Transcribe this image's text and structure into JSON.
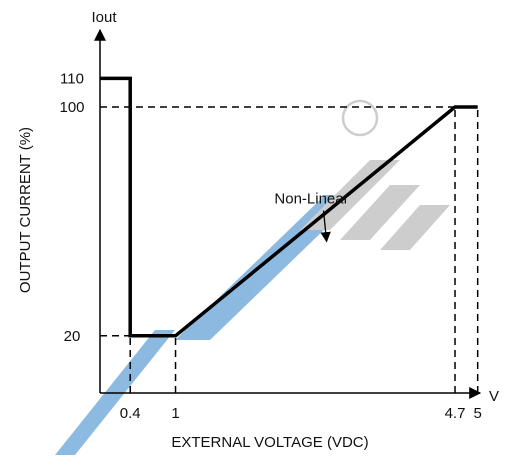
{
  "chart_data": {
    "type": "line",
    "xlabel": "EXTERNAL VOLTAGE (VDC)",
    "ylabel": "OUTPUT CURRENT (%)",
    "x_axis_symbol": "V",
    "y_axis_symbol": "Iout",
    "xlim": [
      0,
      5.6
    ],
    "ylim": [
      0,
      118
    ],
    "x_ticks": [
      {
        "value": 0.4,
        "label": "0.4"
      },
      {
        "value": 1,
        "label": "1"
      },
      {
        "value": 4.7,
        "label": "4.7"
      },
      {
        "value": 5,
        "label": "5"
      }
    ],
    "y_ticks": [
      {
        "value": 20,
        "label": "20"
      },
      {
        "value": 100,
        "label": "100"
      },
      {
        "value": 110,
        "label": "110"
      }
    ],
    "series": [
      {
        "x": [
          0,
          0.4,
          0.4,
          1,
          4.7,
          5
        ],
        "y": [
          110,
          110,
          20,
          20,
          100,
          100
        ],
        "color": "#000000"
      }
    ],
    "reference_lines": [
      {
        "x": [
          0,
          0.4
        ],
        "y": [
          20,
          20
        ]
      },
      {
        "x": [
          0,
          4.7
        ],
        "y": [
          100,
          100
        ]
      },
      {
        "x": [
          0.4,
          0.4
        ],
        "y": [
          0,
          20
        ]
      },
      {
        "x": [
          1,
          1
        ],
        "y": [
          0,
          20
        ]
      },
      {
        "x": [
          4.7,
          4.7
        ],
        "y": [
          0,
          100
        ]
      },
      {
        "x": [
          5,
          5
        ],
        "y": [
          0,
          100
        ]
      }
    ],
    "annotations": [
      {
        "text": "Non-Linear",
        "x": 2.8,
        "y": 68,
        "arrow_to": [
          3.0,
          53
        ]
      }
    ],
    "grid": false,
    "watermark_color": "#7fb2dd"
  }
}
